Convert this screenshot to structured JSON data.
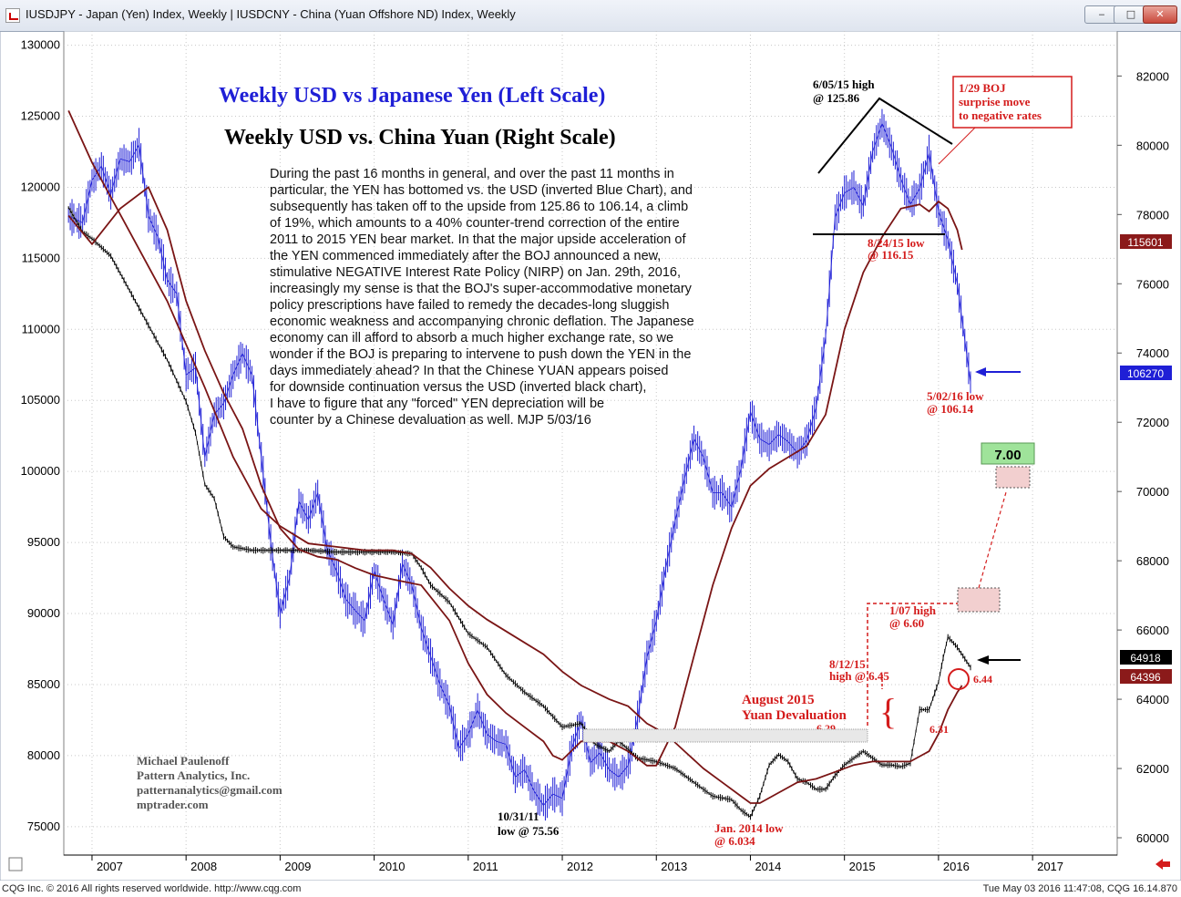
{
  "window": {
    "title": "IUSDJPY - Japan (Yen) Index, Weekly   |   IUSDCNY - China (Yuan Offshore ND) Index, Weekly",
    "min_label": "‒",
    "max_label": "□",
    "close_label": "✕"
  },
  "footer": {
    "left": "CQG Inc. © 2016 All rights reserved worldwide. http://www.cqg.com",
    "right": "Tue May 03 2016 11:47:08, CQG 16.14.870"
  },
  "chart_data": {
    "type": "line",
    "title": "Weekly USD vs Japanese Yen (Left Scale)",
    "subtitle": "Weekly USD vs. China Yuan (Right Scale)",
    "title_color": "#1f1fd6",
    "subtitle_color": "#000000",
    "left_axis": {
      "ticks": [
        75000,
        80000,
        85000,
        90000,
        95000,
        100000,
        105000,
        110000,
        115000,
        120000,
        125000,
        130000
      ],
      "range": [
        73000,
        131000
      ]
    },
    "right_axis": {
      "ticks": [
        60000,
        62000,
        64000,
        66000,
        68000,
        70000,
        72000,
        74000,
        76000,
        78000,
        80000,
        82000
      ],
      "range": [
        59500,
        83300
      ]
    },
    "x_axis": {
      "ticks": [
        "2007",
        "2008",
        "2009",
        "2010",
        "2011",
        "2012",
        "2013",
        "2014",
        "2015",
        "2016",
        "2017"
      ],
      "range": [
        2006.7,
        2017.9
      ]
    },
    "series": [
      {
        "name": "IUSDJPY",
        "color": "#1f1fd6",
        "axis": "left",
        "x": [
          2006.75,
          2006.9,
          2007.0,
          2007.1,
          2007.2,
          2007.3,
          2007.4,
          2007.5,
          2007.6,
          2007.7,
          2007.8,
          2007.9,
          2008.0,
          2008.1,
          2008.2,
          2008.3,
          2008.4,
          2008.5,
          2008.6,
          2008.7,
          2008.8,
          2008.9,
          2009.0,
          2009.1,
          2009.2,
          2009.3,
          2009.4,
          2009.5,
          2009.6,
          2009.7,
          2009.8,
          2009.9,
          2010.0,
          2010.1,
          2010.2,
          2010.3,
          2010.4,
          2010.5,
          2010.6,
          2010.7,
          2010.8,
          2010.9,
          2011.0,
          2011.1,
          2011.2,
          2011.3,
          2011.4,
          2011.5,
          2011.6,
          2011.7,
          2011.8,
          2011.9,
          2012.0,
          2012.1,
          2012.2,
          2012.3,
          2012.4,
          2012.5,
          2012.6,
          2012.7,
          2012.8,
          2012.9,
          2013.0,
          2013.1,
          2013.2,
          2013.3,
          2013.4,
          2013.5,
          2013.6,
          2013.7,
          2013.8,
          2013.9,
          2014.0,
          2014.1,
          2014.2,
          2014.3,
          2014.4,
          2014.5,
          2014.6,
          2014.7,
          2014.8,
          2014.9,
          2015.0,
          2015.1,
          2015.2,
          2015.3,
          2015.4,
          2015.5,
          2015.6,
          2015.7,
          2015.8,
          2015.9,
          2016.0,
          2016.1,
          2016.2,
          2016.34
        ],
        "values": [
          118000,
          117500,
          120500,
          121500,
          119500,
          122000,
          121800,
          123000,
          118000,
          116500,
          113500,
          112500,
          106800,
          107300,
          101000,
          104000,
          104800,
          106800,
          108300,
          106800,
          101000,
          95000,
          90000,
          92500,
          97900,
          96600,
          98500,
          94500,
          93000,
          91000,
          90200,
          89500,
          93000,
          91000,
          89200,
          93500,
          92000,
          89000,
          87000,
          85000,
          83500,
          80500,
          81500,
          83200,
          81500,
          81000,
          80800,
          78500,
          79000,
          77500,
          76500,
          77300,
          77000,
          80500,
          82500,
          79500,
          80200,
          79000,
          78500,
          79300,
          82600,
          86900,
          89500,
          93200,
          96500,
          99500,
          102300,
          101000,
          98500,
          98500,
          97500,
          100200,
          104200,
          102300,
          101900,
          102600,
          102100,
          101300,
          102200,
          104500,
          109500,
          117900,
          119600,
          120000,
          118700,
          122500,
          124500,
          122800,
          120600,
          118800,
          119900,
          122400,
          118300,
          116300,
          113200,
          106270
        ]
      },
      {
        "name": "IUSDCNY",
        "color": "#000000",
        "axis": "right",
        "x": [
          2006.75,
          2006.9,
          2007.0,
          2007.2,
          2007.4,
          2007.6,
          2007.8,
          2008.0,
          2008.1,
          2008.2,
          2008.3,
          2008.4,
          2008.5,
          2008.7,
          2008.9,
          2009.0,
          2009.3,
          2009.6,
          2009.9,
          2010.2,
          2010.4,
          2010.5,
          2010.6,
          2010.8,
          2011.0,
          2011.2,
          2011.4,
          2011.6,
          2011.8,
          2012.0,
          2012.2,
          2012.35,
          2012.5,
          2012.6,
          2012.8,
          2013.0,
          2013.2,
          2013.4,
          2013.6,
          2013.8,
          2013.9,
          2014.0,
          2014.1,
          2014.2,
          2014.3,
          2014.4,
          2014.5,
          2014.6,
          2014.7,
          2014.8,
          2014.9,
          2015.0,
          2015.2,
          2015.4,
          2015.5,
          2015.6,
          2015.7,
          2015.8,
          2015.9,
          2016.0,
          2016.05,
          2016.1,
          2016.2,
          2016.34
        ],
        "values": [
          78200,
          77500,
          77300,
          76800,
          75800,
          74800,
          73800,
          72600,
          71700,
          70200,
          69800,
          68700,
          68400,
          68300,
          68300,
          68300,
          68300,
          68250,
          68250,
          68250,
          68200,
          67800,
          67300,
          66800,
          65900,
          65500,
          64700,
          64200,
          63800,
          63200,
          63300,
          62700,
          62500,
          62800,
          62300,
          62200,
          62000,
          61600,
          61200,
          61100,
          60800,
          60600,
          61200,
          62100,
          62400,
          62200,
          61700,
          61600,
          61400,
          61400,
          61800,
          62100,
          62500,
          62100,
          62100,
          62050,
          62150,
          63700,
          63700,
          64500,
          65200,
          65800,
          65500,
          64918
        ]
      },
      {
        "name": "MA Yen",
        "color": "#7a1515",
        "axis": "left",
        "x": [
          2006.75,
          2007.0,
          2007.3,
          2007.6,
          2007.8,
          2008.0,
          2008.2,
          2008.4,
          2008.6,
          2008.8,
          2009.0,
          2009.2,
          2009.4,
          2009.6,
          2009.8,
          2010.0,
          2010.2,
          2010.5,
          2010.8,
          2011.0,
          2011.2,
          2011.4,
          2011.6,
          2011.8,
          2011.9,
          2012.0,
          2012.2,
          2012.5,
          2012.7,
          2012.9,
          2013.0,
          2013.2,
          2013.4,
          2013.6,
          2013.8,
          2014.0,
          2014.2,
          2014.4,
          2014.6,
          2014.8,
          2015.0,
          2015.2,
          2015.4,
          2015.6,
          2015.8,
          2015.9,
          2016.0,
          2016.1,
          2016.2,
          2016.25
        ],
        "values": [
          118000,
          116000,
          118500,
          120000,
          117000,
          112000,
          108500,
          105500,
          103000,
          99000,
          96000,
          94500,
          94000,
          93800,
          93200,
          92700,
          92400,
          92000,
          89500,
          86500,
          84300,
          83000,
          82000,
          81000,
          80000,
          79700,
          81000,
          81000,
          80300,
          79300,
          79300,
          82000,
          87000,
          92000,
          96000,
          99000,
          100200,
          101000,
          101800,
          104000,
          110000,
          114000,
          116500,
          118500,
          118800,
          118300,
          119000,
          118500,
          117000,
          115600
        ]
      },
      {
        "name": "MA Yuan",
        "color": "#7a1515",
        "axis": "right",
        "x": [
          2006.75,
          2007.0,
          2007.4,
          2007.8,
          2008.2,
          2008.5,
          2008.8,
          2009.0,
          2009.3,
          2009.6,
          2009.9,
          2010.2,
          2010.4,
          2010.6,
          2010.8,
          2011.0,
          2011.2,
          2011.5,
          2011.8,
          2012.0,
          2012.2,
          2012.5,
          2012.7,
          2012.9,
          2013.1,
          2013.3,
          2013.5,
          2013.7,
          2013.9,
          2014.0,
          2014.1,
          2014.3,
          2014.5,
          2014.7,
          2014.9,
          2015.1,
          2015.3,
          2015.5,
          2015.7,
          2015.9,
          2016.0,
          2016.1,
          2016.2,
          2016.25
        ],
        "values": [
          81000,
          79500,
          77500,
          75500,
          73000,
          71000,
          69500,
          69000,
          68500,
          68400,
          68300,
          68300,
          68200,
          67800,
          67200,
          66700,
          66300,
          65800,
          65300,
          64800,
          64400,
          64000,
          63800,
          63300,
          63000,
          62500,
          62000,
          61600,
          61200,
          61000,
          61000,
          61300,
          61600,
          61700,
          61900,
          62100,
          62200,
          62200,
          62200,
          62500,
          63000,
          63700,
          64200,
          64396
        ]
      }
    ],
    "annotations": {
      "intro_lines": [
        "During the past 16 months in general, and over the past 11 months in",
        "particular, the YEN has bottomed vs. the USD (inverted Blue Chart), and",
        "subsequently has taken off to the upside from 125.86 to 106.14, a climb",
        "of 19%, which amounts to a 40% counter-trend correction of the entire",
        "2011 to 2015 YEN bear market. In that the major upside acceleration of",
        "the YEN commenced immediately after the BOJ announced a new,",
        "stimulative NEGATIVE Interest Rate Policy (NIRP) on Jan. 29th, 2016,",
        "increasingly my sense is that the BOJ's super-accommodative monetary",
        "policy prescriptions have failed to remedy the decades-long sluggish",
        "economic weakness and accompanying chronic deflation. The Japanese",
        "economy can ill afford to absorb a much higher exchange rate, so we",
        "wonder if the BOJ is preparing to intervene to push down the YEN in the",
        "days immediately ahead?  In that the Chinese YUAN appears poised",
        "for downside continuation versus the USD (inverted black chart),",
        "I have to figure that any \"forced\" YEN depreciation will be",
        "counter by a Chinese devaluation as well. MJP 5/03/16"
      ],
      "high_2015_line1": "6/05/15 high",
      "high_2015_line2": "@ 125.86",
      "boj_line1": "1/29 BOJ",
      "boj_line2": "surprise move",
      "boj_line3": "to negative rates",
      "low_0824_line1": "8/24/15 low",
      "low_0824_line2": "@ 116.15",
      "low_0502_line1": "5/02/16 low",
      "low_0502_line2": "@ 106.14",
      "target_label": "7.00",
      "high_0107_line1": "1/07 high",
      "high_0107_line2": "@ 6.60",
      "high_0812_line1": "8/12/15",
      "high_0812_line2": "high @ 6.45",
      "aug_line1": "August 2015",
      "aug_line2": "Yuan Devaluation",
      "level_629": "6.29",
      "level_631": "6.31",
      "level_644": "6.44",
      "low_2011_line1": "10/31/11",
      "low_2011_line2": "low @ 75.56",
      "low_2014_line1": "Jan. 2014 low",
      "low_2014_line2": "@ 6.034",
      "author_name": "Michael Paulenoff",
      "author_company": "Pattern Analytics, Inc.",
      "author_email": "patternanalytics@gmail.com",
      "author_site": "mptrader.com"
    },
    "price_boxes": {
      "yen_ma": "115601",
      "yen_last": "106270",
      "yuan_last": "64918",
      "yuan_ma": "64396"
    },
    "colors": {
      "annotation_red": "#d41c1c",
      "target_green": "#9fe39a",
      "ma": "#7a1515"
    }
  }
}
